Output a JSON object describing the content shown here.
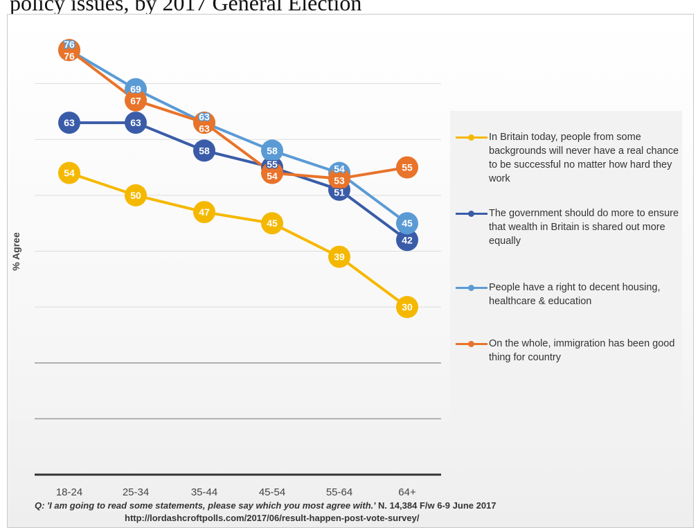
{
  "page_title_fragment": "policy issues, by 2017 General Election",
  "chart_data": {
    "type": "line",
    "categories": [
      "18-24",
      "25-34",
      "35-44",
      "45-54",
      "55-64",
      "64+"
    ],
    "ylabel": "% Agree",
    "ylim": [
      0,
      80
    ],
    "grid": true,
    "legend_position": "right",
    "series": [
      {
        "name": "In Britain today, people from some backgrounds will never have a real chance to be successful no matter how hard they work",
        "color": "#f5b800",
        "values": [
          54,
          50,
          47,
          45,
          39,
          30
        ]
      },
      {
        "name": "The government should do more to ensure that wealth in Britain is shared out more equally",
        "color": "#3a5ca8",
        "values": [
          63,
          63,
          58,
          55,
          51,
          42
        ]
      },
      {
        "name": "People have a right to decent housing, healthcare & education",
        "color": "#5b9bd5",
        "values": [
          76,
          69,
          63,
          58,
          54,
          45
        ]
      },
      {
        "name": "On the whole, immigration has been good thing for country",
        "color": "#e8732a",
        "values": [
          76,
          67,
          63,
          54,
          53,
          55
        ]
      }
    ]
  },
  "footnote": {
    "question": "Q: 'I am going to read some statements, please say which you most agree with.'",
    "details": " N. 14,384 F/w 6-9 June 2017",
    "url": "http://lordashcroftpolls.com/2017/06/result-happen-post-vote-survey/"
  }
}
